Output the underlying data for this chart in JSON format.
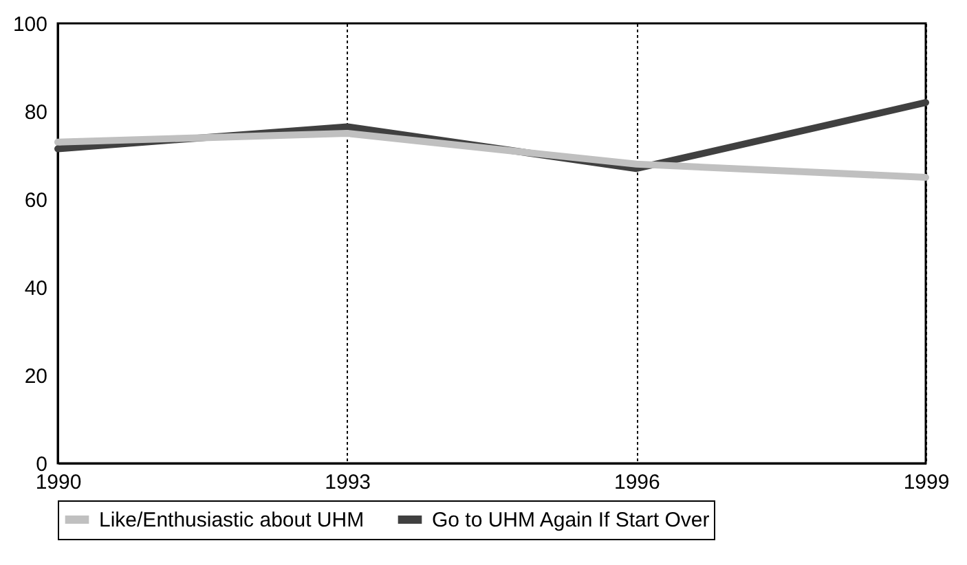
{
  "chart_data": {
    "type": "line",
    "x": [
      1990,
      1993,
      1996,
      1999
    ],
    "series": [
      {
        "name": "Like/Enthusiastic about UHM",
        "color": "#c0c0c0",
        "values": [
          73,
          75,
          68,
          65
        ]
      },
      {
        "name": "Go to UHM Again If Start Over",
        "color": "#404040",
        "values": [
          71.5,
          76.5,
          67,
          82
        ]
      }
    ],
    "xlim": [
      1990,
      1999
    ],
    "xticks": [
      1990,
      1993,
      1996,
      1999
    ],
    "ylim": [
      0,
      100
    ],
    "yticks": [
      0,
      20,
      40,
      60,
      80,
      100
    ],
    "grid": "x",
    "legend": "bottom",
    "marker": "none",
    "line_style": "solid"
  }
}
